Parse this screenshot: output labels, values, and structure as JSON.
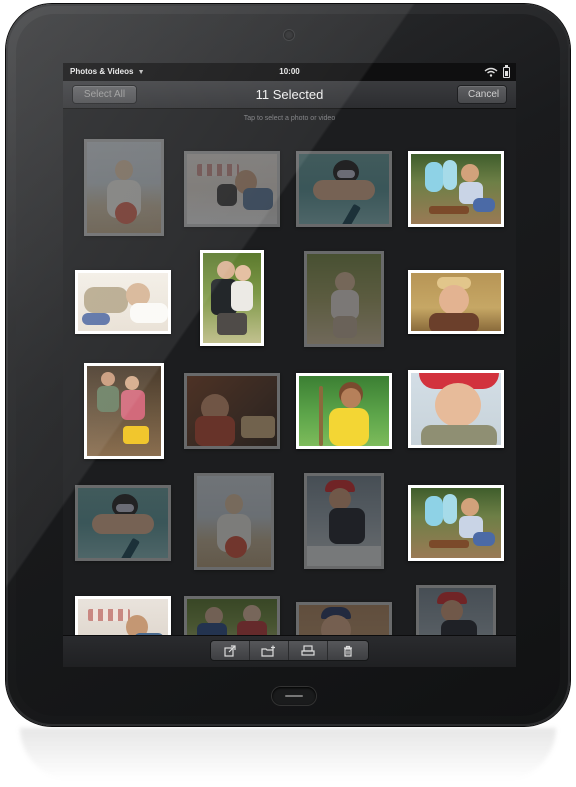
{
  "statusbar": {
    "app_name": "Photos & Videos",
    "caret": "▼",
    "time": "10:00"
  },
  "header": {
    "select_all_label": "Select All",
    "title": "11 Selected",
    "cancel_label": "Cancel"
  },
  "hint": "Tap to select a photo or video",
  "photos": [
    {
      "row": 1,
      "col": 1,
      "selected": true,
      "scene": "child on beach"
    },
    {
      "row": 1,
      "col": 2,
      "selected": true,
      "scene": "child on picnic blanket"
    },
    {
      "row": 1,
      "col": 3,
      "selected": true,
      "scene": "child swimming underwater"
    },
    {
      "row": 1,
      "col": 4,
      "selected": false,
      "scene": "children on swing"
    },
    {
      "row": 2,
      "col": 1,
      "selected": false,
      "scene": "baby lying on blanket"
    },
    {
      "row": 2,
      "col": 2,
      "selected": false,
      "scene": "two children outdoors"
    },
    {
      "row": 2,
      "col": 3,
      "selected": true,
      "scene": "toddler standing"
    },
    {
      "row": 2,
      "col": 4,
      "selected": false,
      "scene": "smiling child in hat"
    },
    {
      "row": 3,
      "col": 1,
      "selected": false,
      "scene": "children with bikes"
    },
    {
      "row": 3,
      "col": 2,
      "selected": true,
      "scene": "child eating"
    },
    {
      "row": 3,
      "col": 3,
      "selected": false,
      "scene": "girl on swing"
    },
    {
      "row": 3,
      "col": 4,
      "selected": false,
      "scene": "girl in red hat"
    },
    {
      "row": 4,
      "col": 1,
      "selected": true,
      "scene": "child swimming underwater"
    },
    {
      "row": 4,
      "col": 2,
      "selected": true,
      "scene": "child on beach"
    },
    {
      "row": 4,
      "col": 3,
      "selected": true,
      "scene": "boy in red cap"
    },
    {
      "row": 4,
      "col": 4,
      "selected": false,
      "scene": "children on swing"
    },
    {
      "row": 5,
      "col": 1,
      "selected": false,
      "scene": "child on picnic blanket"
    },
    {
      "row": 5,
      "col": 2,
      "selected": true,
      "scene": "two children outdoors"
    },
    {
      "row": 5,
      "col": 3,
      "selected": true,
      "scene": "boy in cap"
    },
    {
      "row": 5,
      "col": 4,
      "selected": true,
      "scene": "boy in red cap"
    }
  ],
  "toolbar": {
    "share_icon": "share-icon",
    "add_to_album_icon": "add-to-album-icon",
    "print_icon": "print-icon",
    "delete_icon": "trash-icon"
  },
  "colors": {
    "screen_bg": "#1c1d1f",
    "device": "#1a1b1d",
    "thumb_border": "#ffffff"
  }
}
